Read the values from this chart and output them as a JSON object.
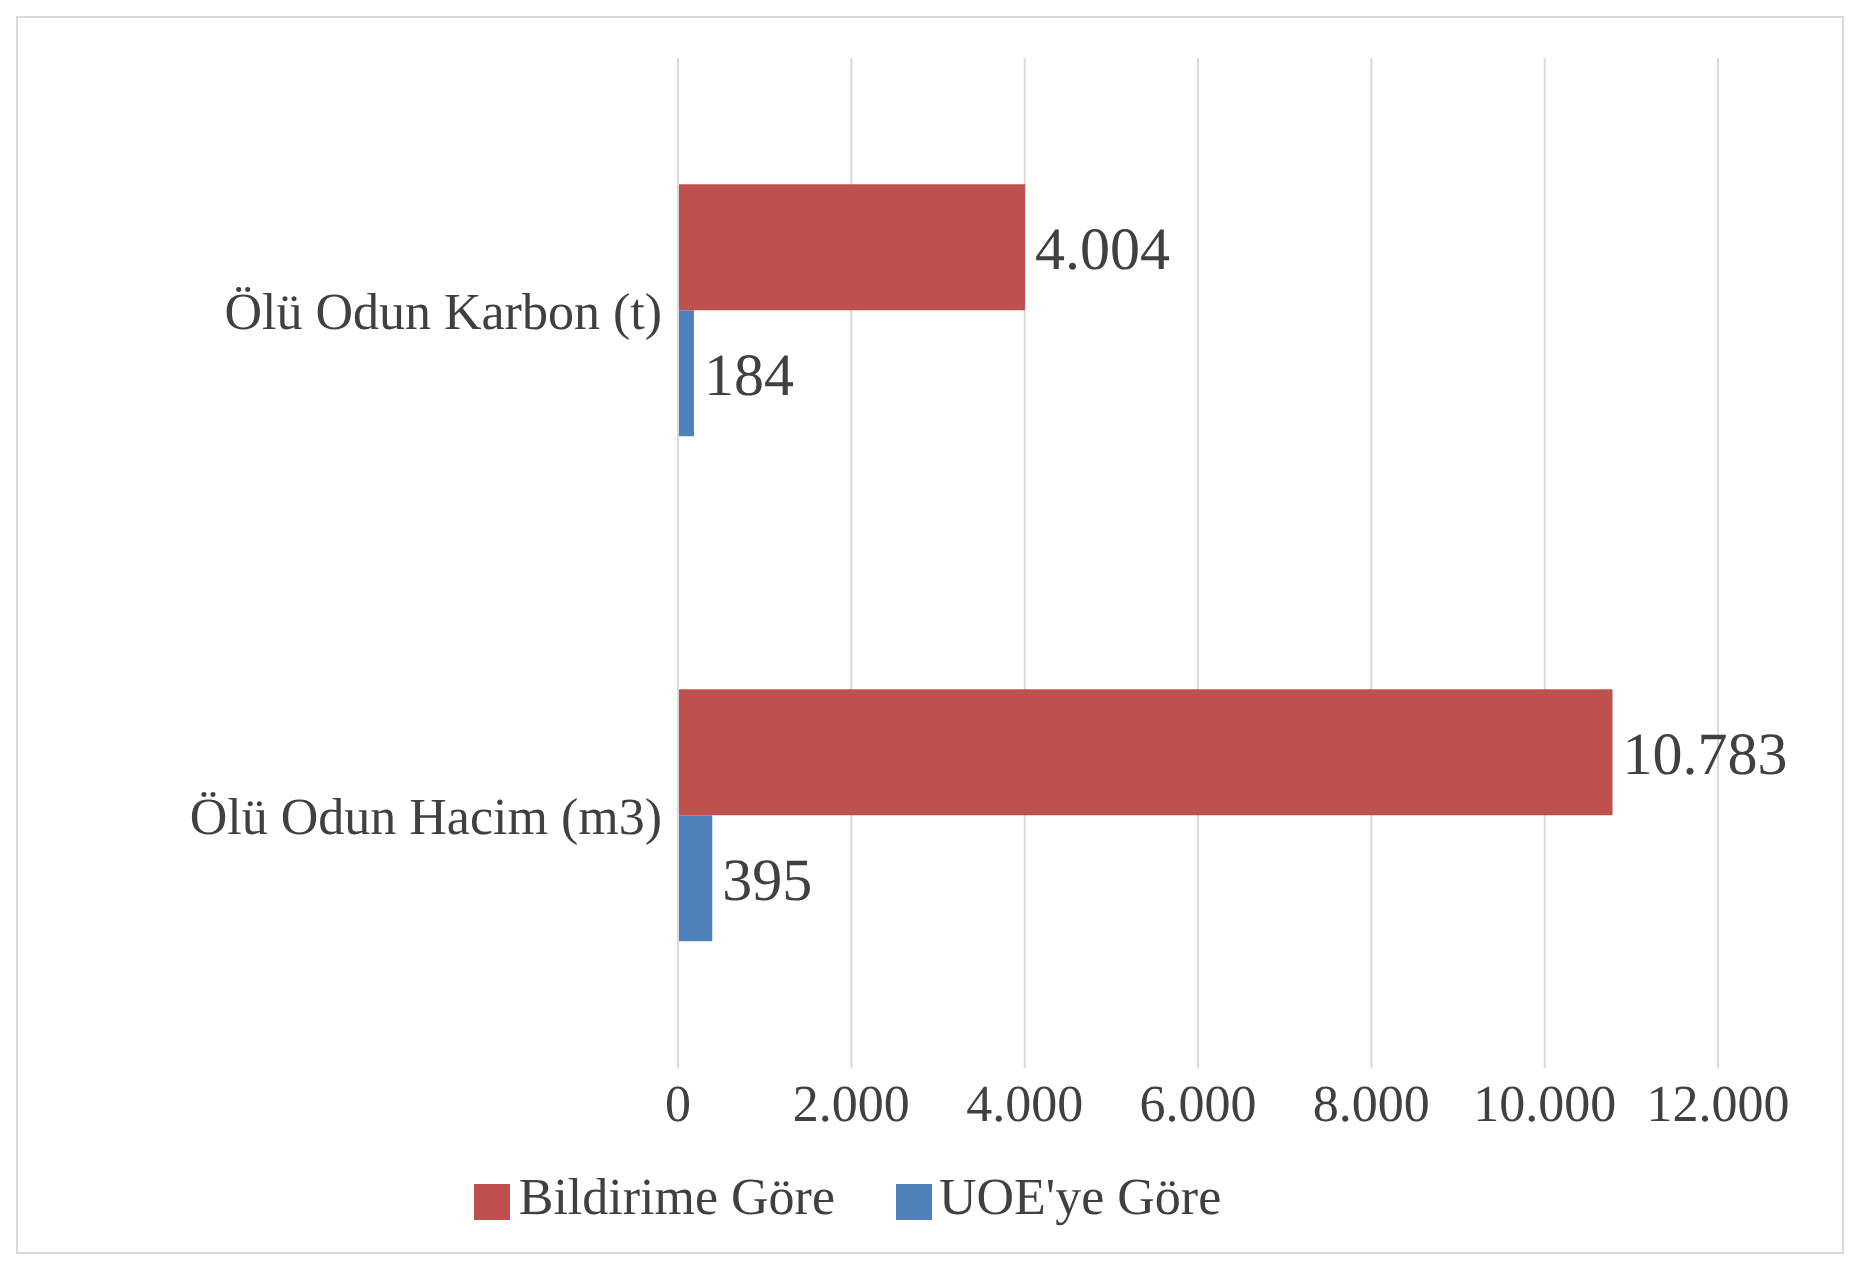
{
  "chart_data": {
    "type": "bar",
    "orientation": "horizontal",
    "categories": [
      "Ölü Odun Karbon (t)",
      "Ölü Odun Hacim (m3)"
    ],
    "series": [
      {
        "name": "Bildirime Göre",
        "color": "#c0504d",
        "values": [
          4004,
          10783
        ],
        "value_labels": [
          "4.004",
          "10.783"
        ]
      },
      {
        "name": "UOE'ye Göre",
        "color": "#4f81bd",
        "values": [
          184,
          395
        ],
        "value_labels": [
          "184",
          "395"
        ]
      }
    ],
    "xlim": [
      0,
      12000
    ],
    "xticks": [
      {
        "value": 0,
        "label": "0"
      },
      {
        "value": 2000,
        "label": "2.000"
      },
      {
        "value": 4000,
        "label": "4.000"
      },
      {
        "value": 6000,
        "label": "6.000"
      },
      {
        "value": 8000,
        "label": "8.000"
      },
      {
        "value": 10000,
        "label": "10.000"
      },
      {
        "value": 12000,
        "label": "12.000"
      }
    ],
    "grid": "x",
    "legend": "bottom"
  }
}
